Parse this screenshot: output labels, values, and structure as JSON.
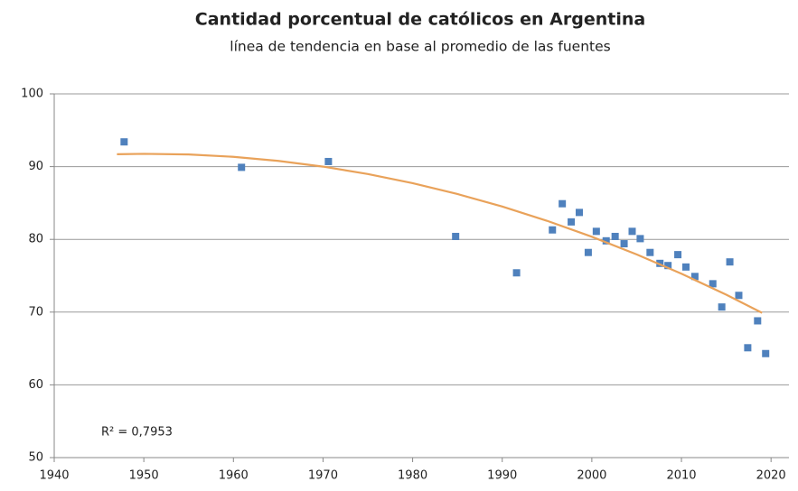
{
  "chart_data": {
    "type": "scatter",
    "title": "Cantidad porcentual de católicos en Argentina",
    "subtitle": "línea de tendencia en base al promedio de las fuentes",
    "annotation": "R² = 0,7953",
    "xlim": [
      1940,
      2022
    ],
    "xticks": [
      1940,
      1950,
      1960,
      1970,
      1980,
      1990,
      2000,
      2010,
      2020
    ],
    "ylim": [
      50,
      100
    ],
    "yticks": [
      50,
      60,
      70,
      80,
      90,
      100
    ],
    "grid": true,
    "series": [
      {
        "color": "#4f81bd",
        "x": [
          1947.8,
          1960.9,
          1970.6,
          1984.8,
          1991.6,
          1995.6,
          1996.7,
          1997.7,
          1998.6,
          1999.6,
          2000.5,
          2001.6,
          2002.6,
          2003.6,
          2004.5,
          2005.4,
          2006.5,
          2007.6,
          2008.5,
          2009.6,
          2010.5,
          2011.5,
          2013.5,
          2014.5,
          2015.4,
          2016.4,
          2017.4,
          2018.5,
          2019.4
        ],
        "values": [
          93.4,
          89.9,
          90.7,
          80.4,
          75.4,
          81.3,
          84.9,
          82.4,
          83.7,
          78.2,
          81.1,
          79.8,
          80.4,
          79.4,
          81.1,
          80.1,
          78.2,
          76.7,
          76.4,
          77.9,
          76.2,
          74.9,
          73.9,
          70.7,
          76.9,
          72.3,
          65.1,
          68.8,
          64.3
        ]
      },
      {
        "type": "line",
        "color": "#e9a25a",
        "x": [
          1947,
          1950,
          1955,
          1960,
          1965,
          1970,
          1975,
          1980,
          1985,
          1990,
          1995,
          2000,
          2005,
          2010,
          2015,
          2019
        ],
        "values": [
          91.7,
          91.76,
          91.67,
          91.35,
          90.79,
          90.0,
          88.98,
          87.72,
          86.23,
          84.51,
          82.55,
          80.36,
          77.93,
          75.28,
          72.39,
          69.9
        ]
      }
    ]
  }
}
